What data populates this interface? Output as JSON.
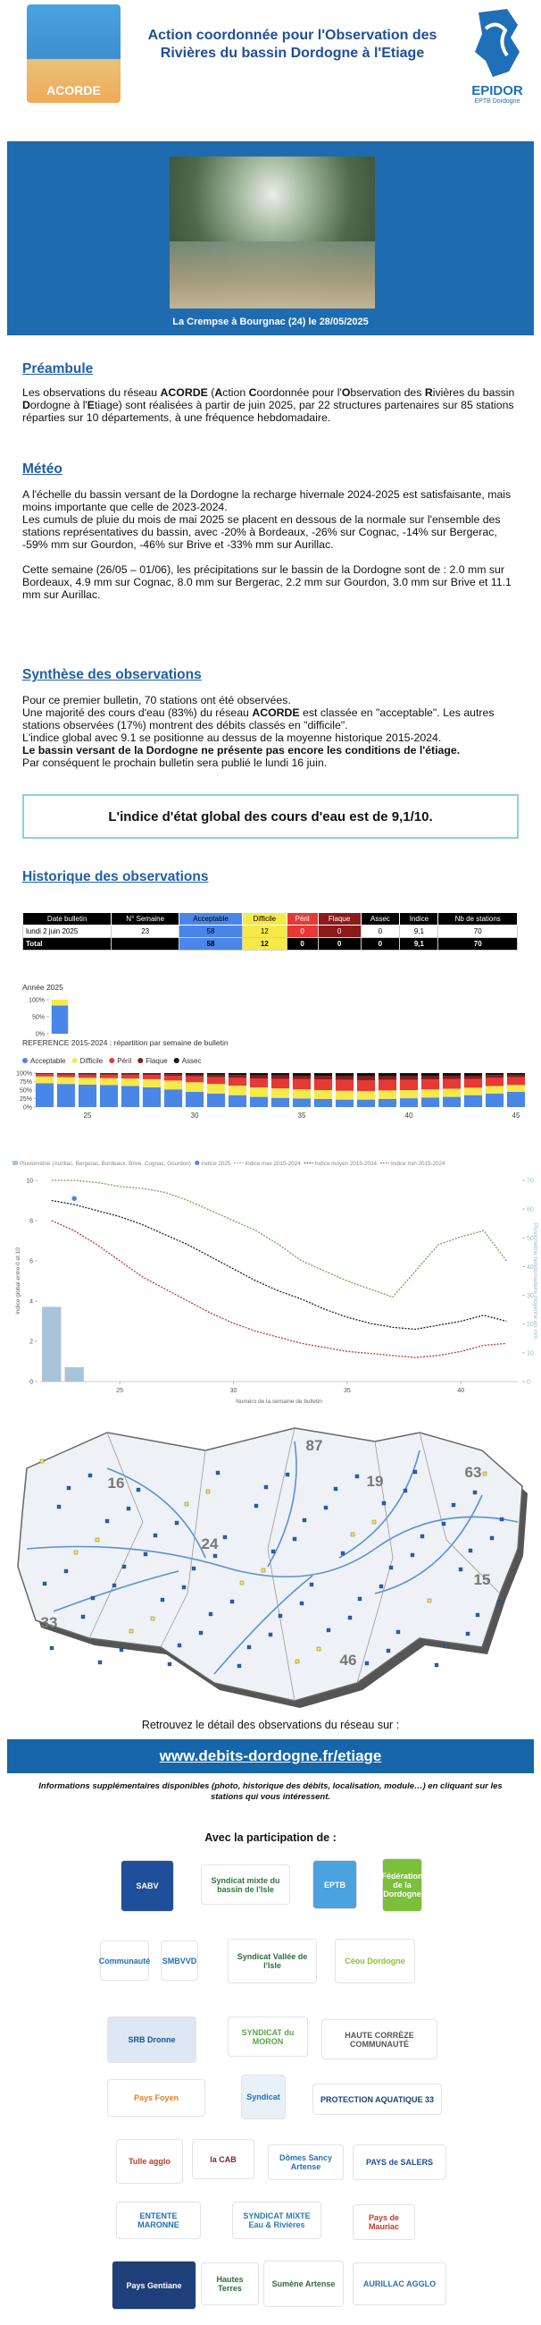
{
  "header": {
    "title_line1": "Action coordonnée pour l'Observation des",
    "title_line2": "Rivières du bassin Dordogne à l'Etiage",
    "logo_left": "ACORDE",
    "logo_right": "EPIDOR",
    "logo_right_sub": "EPTB Dordogne"
  },
  "photo": {
    "caption": "La Crempse à Bourgnac (24) le 28/05/2025"
  },
  "sections": [
    {
      "heading": "Préambule",
      "paragraphs": [
        [
          "Les observations du réseau ",
          {
            "bold": "ACORDE"
          },
          " (",
          {
            "bold": "A"
          },
          "ction ",
          {
            "bold": "C"
          },
          "oordonnée pour l'",
          {
            "bold": "O"
          },
          "bservation des ",
          {
            "bold": "R"
          },
          "ivières du bassin ",
          {
            "bold": "D"
          },
          "ordogne à l'",
          {
            "bold": "E"
          },
          "tiage) sont réalisées à partir de juin 2025, par 22 structures partenaires sur 85 stations réparties sur 10 départements, à une fréquence hebdomadaire."
        ]
      ]
    },
    {
      "heading": "Météo",
      "paragraphs": [
        [
          "A l'échelle du bassin versant de la Dordogne la recharge hivernale 2024-2025 est satisfaisante, mais moins importante que celle de 2023-2024."
        ],
        [
          "Les cumuls de pluie du mois de mai 2025 se placent en dessous de la normale sur l'ensemble des stations représentatives du bassin, avec -20% à Bordeaux, -26% sur Cognac, -14% sur Bergerac, -59% mm sur Gourdon, -46% sur Brive et -33% mm sur Aurillac."
        ],
        [
          "Cette semaine (26/05 – 01/06), les précipitations sur le bassin de la Dordogne sont de : 2.0 mm sur Bordeaux, 4.9 mm sur Cognac, 8.0 mm sur Bergerac, 2.2 mm sur Gourdon, 3.0 mm sur Brive et 11.1 mm sur Aurillac."
        ]
      ]
    },
    {
      "heading": "Synthèse des observations",
      "paragraphs": [
        [
          "Pour ce premier bulletin, 70 stations ont été observées."
        ],
        [
          "Une majorité des cours d'eau (83%) du réseau ",
          {
            "bold": "ACORDE"
          },
          " est classée en \"acceptable\". Les autres stations observées (17%) montrent des débits classés en \"difficile\"."
        ],
        [
          "L'indice global avec 9.1 se positionne au dessus de la moyenne historique 2015-2024."
        ],
        [
          {
            "bold": "Le bassin versant de la Dordogne ne présente pas encore les conditions de l'étiage."
          }
        ],
        [
          "Par conséquent le prochain bulletin sera publié le lundi 16 juin."
        ]
      ]
    },
    {
      "heading": "Historique des observations",
      "paragraphs": []
    }
  ],
  "highlight": "L'indice d'état global des cours d'eau est de 9,1/10.",
  "table": {
    "header": [
      "Date bulletin",
      "N° Semaine",
      "Acceptable",
      "Difficile",
      "Péril",
      "Flaque",
      "Assec",
      "Indice",
      "Nb de stations"
    ],
    "rows": [
      [
        "lundi 2 juin 2025",
        23,
        58,
        12,
        0,
        0,
        0,
        "9,1",
        70
      ],
      [
        "Total",
        null,
        58,
        12,
        0,
        0,
        0,
        "9,1",
        70
      ]
    ]
  },
  "chart_data": [
    {
      "type": "bar",
      "stacked": true,
      "title": "Année 2025",
      "series": [
        {
          "color": "#4a86e8",
          "values": [
            83
          ]
        },
        {
          "color": "#f6e94a",
          "values": [
            17
          ]
        }
      ],
      "ylim": [
        0,
        100
      ],
      "yticks": [
        {
          "value": 0,
          "label": "0%"
        },
        {
          "value": 50,
          "label": "50%"
        },
        {
          "value": 100,
          "label": "100%"
        }
      ]
    },
    {
      "type": "bar",
      "stacked": true,
      "title": "REFERENCE 2015-2024 : répartition par semaine de bulletin",
      "x": [
        23,
        24,
        25,
        26,
        27,
        28,
        29,
        30,
        31,
        32,
        33,
        34,
        35,
        36,
        37,
        38,
        39,
        40,
        41,
        42,
        43,
        44,
        45
      ],
      "xticks": [
        25,
        30,
        35,
        40,
        45
      ],
      "series": [
        {
          "name": "Acceptable",
          "color": "#4a86e8",
          "values": [
            70,
            68,
            66,
            65,
            62,
            58,
            52,
            45,
            40,
            35,
            30,
            27,
            25,
            24,
            22,
            22,
            24,
            26,
            28,
            30,
            35,
            40,
            45
          ]
        },
        {
          "name": "Difficile",
          "color": "#f6e94a",
          "values": [
            20,
            20,
            20,
            20,
            22,
            24,
            26,
            28,
            28,
            28,
            28,
            28,
            27,
            26,
            26,
            25,
            25,
            24,
            24,
            24,
            22,
            22,
            20
          ]
        },
        {
          "name": "Péril",
          "color": "#e53935",
          "values": [
            7,
            8,
            9,
            10,
            11,
            12,
            14,
            17,
            20,
            23,
            26,
            28,
            30,
            31,
            32,
            32,
            31,
            30,
            29,
            28,
            26,
            24,
            23
          ]
        },
        {
          "name": "Flaque",
          "color": "#8b1a1a",
          "values": [
            2,
            3,
            3,
            3,
            3,
            4,
            5,
            6,
            7,
            8,
            9,
            10,
            10,
            11,
            11,
            12,
            11,
            11,
            10,
            10,
            9,
            8,
            7
          ]
        },
        {
          "name": "Assec",
          "color": "#111111",
          "values": [
            1,
            1,
            2,
            2,
            2,
            2,
            3,
            4,
            5,
            6,
            7,
            7,
            8,
            8,
            9,
            9,
            9,
            9,
            9,
            8,
            8,
            6,
            5
          ]
        }
      ],
      "ylim": [
        0,
        100
      ],
      "yticks": [
        {
          "value": 0,
          "label": "0%"
        },
        {
          "value": 25,
          "label": "25%"
        },
        {
          "value": 50,
          "label": "50%"
        },
        {
          "value": 75,
          "label": "75%"
        },
        {
          "value": 100,
          "label": "100%"
        }
      ]
    },
    {
      "type": "line",
      "xlabel": "Numéro de la semaine de bulletin",
      "ylabel": "Indice global entre 0 et 10",
      "y2label": "Pluviométrie hebdomadaire moyenne en mm",
      "xlim": [
        21.5,
        42.5
      ],
      "xticks": [
        25,
        30,
        35,
        40
      ],
      "ylim": [
        0,
        10
      ],
      "yticks": [
        0,
        2,
        4,
        6,
        8,
        10
      ],
      "y2lim": [
        0,
        70
      ],
      "y2ticks": [
        0,
        10,
        20,
        30,
        40,
        50,
        60,
        70
      ],
      "series": [
        {
          "name": "Pluviométrie (Aurillac, Bergerac, Bordeaux, Brive, Cognac, Gourdon)",
          "type": "bar",
          "axis": "y2",
          "color": "#a9c4da",
          "x": [
            22,
            23
          ],
          "values": [
            26,
            5
          ]
        },
        {
          "name": "Indice 2025",
          "type": "scatter",
          "color": "#4a86e8",
          "x": [
            23
          ],
          "values": [
            9.1
          ]
        },
        {
          "name": "Indice max 2015-2024",
          "type": "line",
          "dash": true,
          "color": "#6aa84f",
          "x": [
            22,
            23,
            24,
            25,
            26,
            27,
            28,
            29,
            30,
            31,
            32,
            33,
            34,
            35,
            36,
            37,
            38,
            39,
            40,
            41,
            42
          ],
          "values": [
            10,
            10,
            9.9,
            9.7,
            9.6,
            9.4,
            9,
            8.5,
            8,
            7.5,
            6.8,
            6,
            5.5,
            5,
            4.6,
            4.2,
            5.5,
            6.8,
            7.2,
            7.5,
            6
          ]
        },
        {
          "name": "Indice moyen 2015-2024",
          "type": "line",
          "dash": true,
          "color": "#222222",
          "x": [
            22,
            23,
            24,
            25,
            26,
            27,
            28,
            29,
            30,
            31,
            32,
            33,
            34,
            35,
            36,
            37,
            38,
            39,
            40,
            41,
            42
          ],
          "values": [
            9,
            8.8,
            8.5,
            8.2,
            7.8,
            7.3,
            6.8,
            6.2,
            5.6,
            5,
            4.5,
            4.1,
            3.6,
            3.2,
            2.9,
            2.7,
            2.6,
            2.8,
            3,
            3.3,
            3
          ]
        },
        {
          "name": "Indice min 2015-2024",
          "type": "line",
          "dash": true,
          "color": "#c0392b",
          "x": [
            22,
            23,
            24,
            25,
            26,
            27,
            28,
            29,
            30,
            31,
            32,
            33,
            34,
            35,
            36,
            37,
            38,
            39,
            40,
            41,
            42
          ],
          "values": [
            8,
            7.5,
            6.8,
            6,
            5.2,
            4.6,
            4,
            3.4,
            2.9,
            2.5,
            2.2,
            1.9,
            1.7,
            1.5,
            1.4,
            1.3,
            1.2,
            1.3,
            1.5,
            1.8,
            1.9
          ]
        }
      ]
    }
  ],
  "map": {
    "labels": [
      "87",
      "16",
      "19",
      "63",
      "24",
      "15",
      "33",
      "46"
    ]
  },
  "footer": {
    "intro": "Retrouvez le détail des observations du réseau sur :",
    "link": "www.debits-dordogne.fr/etiage",
    "note": "Informations supplémentaires disponibles (photo, historique des débits, localisation, module…) en cliquant sur les stations qui vous intéressent.",
    "partners_title": "Avec la participation de :"
  },
  "partners": [
    "SABV",
    "Syndicat mixte du bassin de l'Isle",
    "EPTB",
    "Fédération de la Dordogne",
    "Communauté",
    "SMBVVD",
    "Syndicat Vallée de l'Isle",
    "Céou Dordogne",
    "SRB Dronne",
    "SYNDICAT du MORON",
    "HAUTE CORRÈZE COMMUNAUTÉ",
    "Pays Foyen",
    "Syndicat",
    "PROTECTION AQUATIQUE 33",
    "Tulle agglo",
    "la CAB",
    "Dômes Sancy Artense",
    "PAYS de SALERS",
    "ENTENTE MARONNE",
    "SYNDICAT MIXTE Eau & Rivières",
    "Pays de Mauriac",
    "Pays Gentiane",
    "Hautes Terres",
    "Sumène Artense",
    "AURILLAC AGGLO"
  ]
}
